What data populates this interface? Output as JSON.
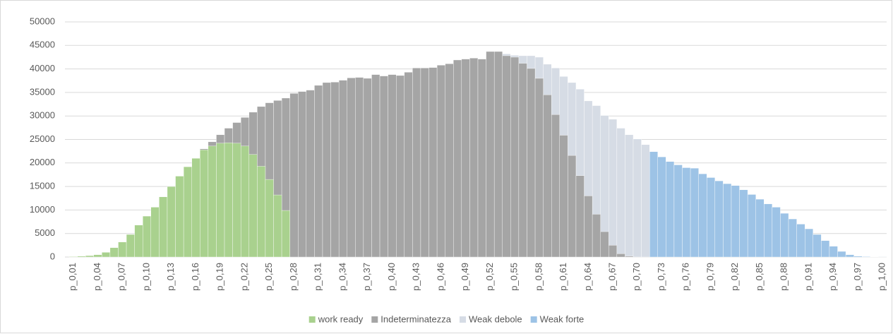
{
  "chart_data": {
    "type": "bar",
    "categories": [
      "p_0,01",
      null,
      null,
      "p_0,04",
      null,
      null,
      "p_0,07",
      null,
      null,
      "p_0,10",
      null,
      null,
      "p_0,13",
      null,
      null,
      "p_0,16",
      null,
      null,
      "p_0,19",
      null,
      null,
      "p_0,22",
      null,
      null,
      "p_0,25",
      null,
      null,
      "p_0,28",
      null,
      null,
      "p_0,31",
      null,
      null,
      "p_0,34",
      null,
      null,
      "p_0,37",
      null,
      null,
      "p_0,40",
      null,
      null,
      "p_0,43",
      null,
      null,
      "p_0,46",
      null,
      null,
      "p_0,49",
      null,
      null,
      "p_0,52",
      null,
      null,
      "p_0,55",
      null,
      null,
      "p_0,58",
      null,
      null,
      "p_0,61",
      null,
      null,
      "p_0,64",
      null,
      null,
      "p_0,67",
      null,
      null,
      "p_0,70",
      null,
      null,
      "p_0,73",
      null,
      null,
      "p_0,76",
      null,
      null,
      "p_0,79",
      null,
      null,
      "p_0,82",
      null,
      null,
      "p_0,85",
      null,
      null,
      "p_0,88",
      null,
      null,
      "p_0,91",
      null,
      null,
      "p_0,94",
      null,
      null,
      "p_0,97",
      null,
      null,
      "p_1,00"
    ],
    "series": [
      {
        "name": "work ready",
        "color": "#a9d18e",
        "values": [
          100,
          200,
          300,
          500,
          1000,
          2000,
          3200,
          4800,
          6800,
          8700,
          10600,
          12800,
          15000,
          17200,
          19200,
          21000,
          22800,
          23600,
          24200,
          24300,
          24200,
          23600,
          21800,
          19300,
          16500,
          13200,
          9900,
          null,
          null,
          null,
          null,
          null,
          null,
          null,
          null,
          null,
          null,
          null,
          null,
          null,
          null,
          null,
          null,
          null,
          null,
          null,
          null,
          null,
          null,
          null,
          null,
          null,
          null,
          null,
          null,
          null,
          null,
          null,
          null,
          null,
          null,
          null,
          null,
          null,
          null,
          null,
          null,
          null,
          null,
          null,
          null,
          null,
          null,
          null,
          null,
          null,
          null,
          null,
          null,
          null,
          null,
          null,
          null,
          null,
          null,
          null,
          null,
          null,
          null,
          null,
          null,
          null,
          null,
          null,
          null,
          null,
          null,
          null,
          null,
          null
        ]
      },
      {
        "name": "Indeterminatezza",
        "color": "#a5a5a5",
        "values": [
          null,
          null,
          null,
          null,
          null,
          null,
          null,
          null,
          null,
          null,
          null,
          null,
          null,
          null,
          null,
          null,
          23000,
          24500,
          26000,
          27400,
          28600,
          29700,
          30800,
          32000,
          32800,
          33300,
          33800,
          34800,
          35200,
          35500,
          36500,
          37100,
          37200,
          37600,
          38100,
          38200,
          38000,
          38800,
          38500,
          38800,
          38600,
          39300,
          40200,
          40200,
          40300,
          40800,
          41100,
          41900,
          42100,
          42300,
          42100,
          43700,
          43700,
          42800,
          42500,
          41200,
          40100,
          38000,
          34500,
          30300,
          25900,
          21600,
          17300,
          13000,
          9100,
          5400,
          2500,
          700,
          200,
          null,
          null,
          null,
          null,
          null,
          null,
          null,
          null,
          null,
          null,
          null,
          null,
          null,
          null,
          null,
          null,
          null,
          null,
          null,
          null,
          null,
          null,
          null,
          null,
          null,
          null,
          null,
          null,
          null,
          null,
          null
        ]
      },
      {
        "name": "Weak debole",
        "color": "#d6dce5",
        "values": [
          null,
          null,
          null,
          null,
          null,
          null,
          null,
          null,
          null,
          null,
          null,
          null,
          null,
          null,
          null,
          null,
          null,
          null,
          null,
          null,
          null,
          null,
          null,
          null,
          null,
          null,
          null,
          null,
          null,
          null,
          null,
          null,
          null,
          null,
          null,
          null,
          null,
          null,
          null,
          null,
          null,
          null,
          null,
          null,
          null,
          null,
          null,
          null,
          null,
          null,
          null,
          null,
          null,
          43200,
          42900,
          42800,
          42800,
          42500,
          41000,
          40200,
          38400,
          37100,
          35700,
          33200,
          32200,
          30100,
          29300,
          27400,
          26000,
          25100,
          23900,
          null,
          null,
          null,
          null,
          null,
          null,
          null,
          null,
          null,
          null,
          null,
          null,
          null,
          null,
          null,
          null,
          null,
          null,
          null,
          null,
          null,
          null,
          null,
          null,
          null,
          null,
          null,
          null,
          null
        ]
      },
      {
        "name": "Weak forte",
        "color": "#9dc3e6",
        "values": [
          null,
          null,
          null,
          null,
          null,
          null,
          null,
          null,
          null,
          null,
          null,
          null,
          null,
          null,
          null,
          null,
          null,
          null,
          null,
          null,
          null,
          null,
          null,
          null,
          null,
          null,
          null,
          null,
          null,
          null,
          null,
          null,
          null,
          null,
          null,
          null,
          null,
          null,
          null,
          null,
          null,
          null,
          null,
          null,
          null,
          null,
          null,
          null,
          null,
          null,
          null,
          null,
          null,
          null,
          null,
          null,
          null,
          null,
          null,
          null,
          null,
          null,
          null,
          null,
          null,
          null,
          null,
          null,
          null,
          null,
          null,
          22400,
          21300,
          20300,
          19600,
          19000,
          18900,
          17700,
          16900,
          16200,
          15600,
          15200,
          14300,
          13300,
          12300,
          11300,
          10600,
          9300,
          8100,
          7000,
          6000,
          4800,
          3500,
          2300,
          1200,
          500,
          200,
          100,
          50,
          20
        ]
      }
    ],
    "ylim": [
      0,
      50000
    ],
    "yticks": [
      0,
      5000,
      10000,
      15000,
      20000,
      25000,
      30000,
      35000,
      40000,
      45000,
      50000
    ],
    "grid": true,
    "legend": "bottom"
  }
}
